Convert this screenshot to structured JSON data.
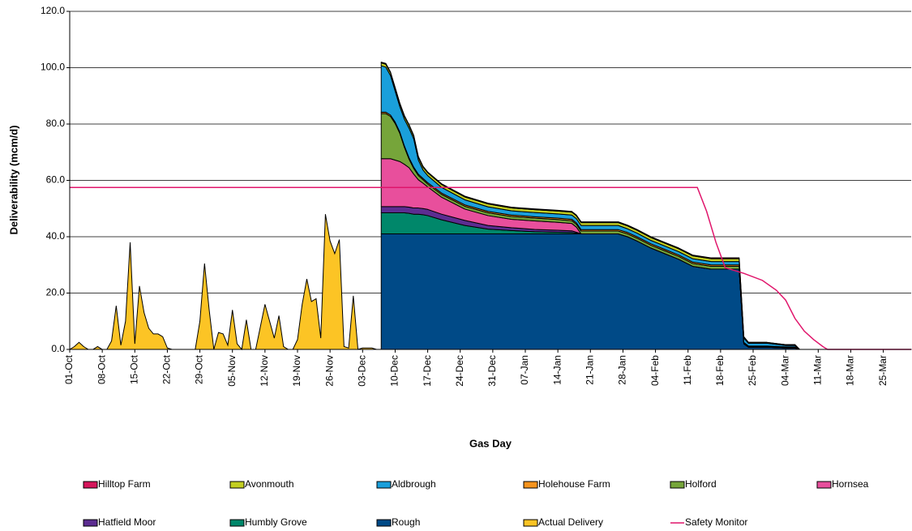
{
  "chart_data": {
    "type": "area",
    "y_label": "Deliverability (mcm/d)",
    "x_label": "Gas Day",
    "xlim": [
      0,
      181
    ],
    "ylim": [
      0,
      120
    ],
    "grid": true,
    "xticks": [
      {
        "value": 0,
        "label": "01-Oct"
      },
      {
        "value": 7,
        "label": "08-Oct"
      },
      {
        "value": 14,
        "label": "15-Oct"
      },
      {
        "value": 21,
        "label": "22-Oct"
      },
      {
        "value": 28,
        "label": "29-Oct"
      },
      {
        "value": 35,
        "label": "05-Nov"
      },
      {
        "value": 42,
        "label": "12-Nov"
      },
      {
        "value": 49,
        "label": "19-Nov"
      },
      {
        "value": 56,
        "label": "26-Nov"
      },
      {
        "value": 63,
        "label": "03-Dec"
      },
      {
        "value": 70,
        "label": "10-Dec"
      },
      {
        "value": 77,
        "label": "17-Dec"
      },
      {
        "value": 84,
        "label": "24-Dec"
      },
      {
        "value": 91,
        "label": "31-Dec"
      },
      {
        "value": 98,
        "label": "07-Jan"
      },
      {
        "value": 105,
        "label": "14-Jan"
      },
      {
        "value": 112,
        "label": "21-Jan"
      },
      {
        "value": 119,
        "label": "28-Jan"
      },
      {
        "value": 126,
        "label": "04-Feb"
      },
      {
        "value": 133,
        "label": "11-Feb"
      },
      {
        "value": 140,
        "label": "18-Feb"
      },
      {
        "value": 147,
        "label": "25-Feb"
      },
      {
        "value": 154,
        "label": "04-Mar"
      },
      {
        "value": 161,
        "label": "11-Mar"
      },
      {
        "value": 168,
        "label": "18-Mar"
      },
      {
        "value": 175,
        "label": "25-Mar"
      }
    ],
    "yticks": [
      {
        "value": 0,
        "label": "0.0"
      },
      {
        "value": 20,
        "label": "20.0"
      },
      {
        "value": 40,
        "label": "40.0"
      },
      {
        "value": 60,
        "label": "60.0"
      },
      {
        "value": 80,
        "label": "80.0"
      },
      {
        "value": 100,
        "label": "100.0"
      },
      {
        "value": 120,
        "label": "120.0"
      }
    ],
    "series": [
      {
        "name": "Hilltop Farm",
        "color": "#d6155b",
        "stacked": true,
        "x": [
          67,
          68,
          69,
          70,
          71,
          72,
          73,
          74,
          75,
          76,
          77,
          80,
          85,
          90,
          95,
          100,
          105,
          108,
          109,
          110,
          115,
          117,
          118,
          120,
          122,
          125,
          128,
          131,
          134,
          138,
          144,
          145,
          146,
          150,
          154,
          156,
          157,
          181
        ],
        "values": [
          0.3,
          0.3,
          0.3,
          0.3,
          0.3,
          0.3,
          0.3,
          0.3,
          0.3,
          0.3,
          0.3,
          0.3,
          0.3,
          0.3,
          0.3,
          0.3,
          0.3,
          0.3,
          0.3,
          0.3,
          0.3,
          0.3,
          0.3,
          0.3,
          0.3,
          0.3,
          0.3,
          0.3,
          0.3,
          0.3,
          0.3,
          0,
          0,
          0,
          0,
          0,
          0,
          0
        ]
      },
      {
        "name": "Avonmouth",
        "color": "#c3cf21",
        "stacked": true,
        "x": [
          67,
          68,
          69,
          70,
          71,
          72,
          73,
          74,
          75,
          76,
          77,
          80,
          85,
          90,
          95,
          100,
          105,
          108,
          109,
          110,
          115,
          117,
          118,
          120,
          122,
          125,
          128,
          131,
          134,
          138,
          144,
          145,
          146,
          150,
          154,
          156,
          157,
          181
        ],
        "values": [
          1,
          1,
          1,
          1,
          1,
          1,
          1,
          1,
          1,
          1,
          1,
          1,
          1,
          1,
          1,
          1,
          1,
          1,
          1,
          1,
          1,
          1,
          1,
          1,
          1,
          1,
          1,
          1,
          1,
          1,
          1,
          0.5,
          0.3,
          0.3,
          0.3,
          0.3,
          0,
          0
        ]
      },
      {
        "name": "Aldbrough",
        "color": "#1a9fdb",
        "stacked": true,
        "x": [
          67,
          68,
          69,
          70,
          71,
          72,
          73,
          74,
          75,
          76,
          77,
          80,
          85,
          90,
          95,
          100,
          105,
          108,
          109,
          110,
          115,
          117,
          118,
          120,
          122,
          125,
          128,
          131,
          134,
          138,
          144,
          145,
          146,
          150,
          154,
          156,
          157,
          181
        ],
        "values": [
          16.5,
          16,
          14,
          11,
          9,
          9.5,
          10.5,
          10,
          5,
          3,
          2.5,
          2,
          1.8,
          1.6,
          1.5,
          1.5,
          1.5,
          1.5,
          1.5,
          1.5,
          1.5,
          1.5,
          1.5,
          1.3,
          1.3,
          1.2,
          1.2,
          1.2,
          1.2,
          1.2,
          1.2,
          1.5,
          1,
          1,
          0.5,
          0.5,
          0,
          0
        ]
      },
      {
        "name": "Holehouse Farm",
        "color": "#f7941d",
        "stacked": true,
        "x": [
          67,
          68,
          69,
          70,
          71,
          72,
          73,
          74,
          75,
          76,
          77,
          80,
          85,
          90,
          95,
          100,
          105,
          108,
          109,
          110,
          115,
          117,
          118,
          120,
          122,
          125,
          128,
          131,
          134,
          138,
          144,
          145,
          146,
          150,
          154,
          156,
          157,
          181
        ],
        "values": [
          0.5,
          0.5,
          0.5,
          0.5,
          0.5,
          0.5,
          0.5,
          0.5,
          0.5,
          0.5,
          0.5,
          0.5,
          0.5,
          0.5,
          0.5,
          0.5,
          0.5,
          0.5,
          0.5,
          0.5,
          0.5,
          0.5,
          0.5,
          0.5,
          0.5,
          0.5,
          0.5,
          0.5,
          0.5,
          0.5,
          0.5,
          0.3,
          0.2,
          0.2,
          0.2,
          0.2,
          0,
          0
        ]
      },
      {
        "name": "Holford",
        "color": "#76a53a",
        "stacked": true,
        "x": [
          67,
          68,
          69,
          70,
          71,
          72,
          73,
          74,
          75,
          76,
          77,
          80,
          85,
          90,
          95,
          100,
          105,
          108,
          109,
          110,
          115,
          117,
          118,
          120,
          122,
          125,
          128,
          131,
          134,
          138,
          144,
          145,
          146,
          150,
          154,
          156,
          157,
          181
        ],
        "values": [
          16,
          16,
          15,
          13,
          10,
          6,
          3,
          2,
          1.5,
          1.2,
          1,
          1,
          1,
          1,
          1,
          1,
          1,
          1,
          1,
          1,
          1,
          1,
          1,
          1,
          1,
          1,
          1,
          1,
          1,
          1,
          1,
          0.2,
          0.2,
          0.2,
          0.2,
          0.2,
          0,
          0
        ]
      },
      {
        "name": "Hornsea",
        "color": "#e84f9c",
        "stacked": true,
        "x": [
          67,
          68,
          69,
          70,
          71,
          72,
          73,
          74,
          75,
          76,
          77,
          80,
          85,
          90,
          95,
          100,
          105,
          108,
          109,
          110,
          115,
          117,
          118,
          120,
          122,
          125,
          128,
          131,
          134,
          138,
          144,
          145,
          146,
          150,
          154,
          156,
          157,
          181
        ],
        "values": [
          17,
          17,
          17,
          16.5,
          16,
          15,
          14,
          12,
          10,
          9,
          8,
          6,
          4,
          3.5,
          3,
          3,
          2.8,
          2.6,
          1.8,
          0,
          0,
          0,
          0,
          0,
          0,
          0,
          0,
          0,
          0,
          0,
          0,
          0,
          0,
          0,
          0,
          0,
          0,
          0
        ]
      },
      {
        "name": "Hatfield Moor",
        "color": "#5c2d91",
        "stacked": true,
        "x": [
          67,
          68,
          69,
          70,
          71,
          72,
          73,
          74,
          75,
          76,
          77,
          80,
          85,
          90,
          95,
          100,
          105,
          108,
          109,
          110,
          115,
          117,
          118,
          120,
          122,
          125,
          128,
          131,
          134,
          138,
          144,
          145,
          146,
          150,
          154,
          156,
          157,
          181
        ],
        "values": [
          2.2,
          2.2,
          2.2,
          2.2,
          2.2,
          2.2,
          2.2,
          2.2,
          2.2,
          2.2,
          2.2,
          2,
          1.8,
          1.3,
          1,
          0.8,
          0.7,
          0.6,
          0.3,
          0,
          0,
          0,
          0,
          0,
          0,
          0,
          0,
          0,
          0,
          0,
          0,
          0,
          0,
          0,
          0,
          0,
          0,
          0
        ]
      },
      {
        "name": "Humbly Grove",
        "color": "#00876a",
        "stacked": true,
        "x": [
          67,
          68,
          69,
          70,
          71,
          72,
          73,
          74,
          75,
          76,
          77,
          80,
          85,
          90,
          95,
          100,
          105,
          108,
          109,
          110,
          115,
          117,
          118,
          120,
          122,
          125,
          128,
          131,
          134,
          138,
          144,
          145,
          146,
          150,
          154,
          156,
          157,
          181
        ],
        "values": [
          7.5,
          7.5,
          7.5,
          7.5,
          7.5,
          7.5,
          7.3,
          7,
          7,
          6.8,
          6.5,
          5,
          3,
          1.7,
          1.2,
          0.8,
          0.6,
          0.5,
          0.3,
          0,
          0,
          0,
          0,
          0,
          0,
          0,
          0,
          0,
          0,
          0,
          0,
          0,
          0,
          0,
          0,
          0,
          0,
          0
        ]
      },
      {
        "name": "Rough",
        "color": "#004a87",
        "stacked": true,
        "x": [
          67,
          68,
          69,
          70,
          71,
          72,
          73,
          74,
          75,
          76,
          77,
          80,
          85,
          90,
          95,
          100,
          105,
          108,
          109,
          110,
          115,
          117,
          118,
          120,
          122,
          125,
          128,
          131,
          134,
          138,
          144,
          145,
          146,
          150,
          154,
          156,
          157,
          181
        ],
        "values": [
          41,
          41,
          41,
          41,
          41,
          41,
          41,
          41,
          41,
          41,
          41,
          41,
          41,
          41,
          41,
          41,
          41,
          41,
          41,
          41,
          41,
          41,
          41,
          40,
          38.5,
          36,
          34,
          32,
          29.5,
          28.5,
          28.5,
          2,
          0.8,
          0.8,
          0.5,
          0.5,
          0,
          0
        ]
      },
      {
        "name": "Actual Delivery",
        "color": "#fcc425",
        "x": [
          0,
          1,
          2,
          3,
          4,
          5,
          6,
          7,
          8,
          9,
          10,
          11,
          12,
          13,
          14,
          15,
          16,
          17,
          18,
          19,
          20,
          21,
          22,
          23,
          24,
          25,
          26,
          27,
          28,
          29,
          30,
          31,
          32,
          33,
          34,
          35,
          36,
          37,
          38,
          39,
          40,
          41,
          42,
          43,
          44,
          45,
          46,
          47,
          48,
          49,
          50,
          51,
          52,
          53,
          54,
          55,
          56,
          57,
          58,
          59,
          60,
          61,
          62,
          63,
          64,
          65,
          66
        ],
        "values": [
          0,
          1,
          2.5,
          1,
          0,
          0,
          1,
          0,
          0,
          3,
          15.5,
          1.5,
          10,
          38,
          2,
          22.5,
          13,
          7.5,
          5.5,
          5.5,
          4.5,
          0.5,
          0,
          0,
          0,
          0,
          0,
          0,
          10,
          30.5,
          14,
          0,
          6,
          5.5,
          1.5,
          14,
          2,
          0,
          10.5,
          0,
          0,
          8,
          16,
          10,
          4,
          12,
          1,
          0,
          0,
          3.5,
          16,
          25,
          17,
          18,
          4,
          48,
          38.5,
          34,
          39,
          1,
          0.5,
          19,
          0,
          0.5,
          0.5,
          0.5,
          0
        ]
      },
      {
        "name": "Safety Monitor",
        "color": "#e0156b",
        "line": true,
        "x": [
          0,
          135,
          137,
          139,
          141,
          145,
          149,
          152,
          154,
          156,
          158,
          160,
          162,
          163,
          181
        ],
        "values": [
          57.5,
          57.5,
          49,
          38,
          29,
          27,
          24.5,
          21,
          17.5,
          11,
          6.5,
          3.5,
          1,
          0,
          0
        ]
      }
    ]
  }
}
